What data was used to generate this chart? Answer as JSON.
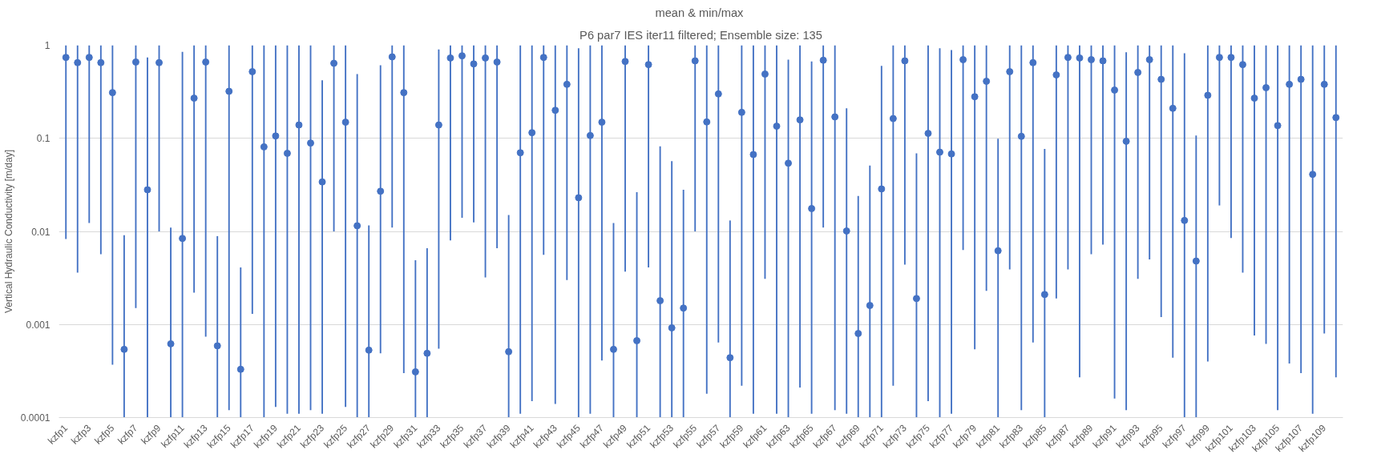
{
  "chart_data": {
    "type": "bar",
    "title": "mean  & min/max",
    "subtitle": "P6 par7 IES iter11 filtered; Ensemble size: 135",
    "ylabel": "Vertical Hydraulic Conductivity [m/day]",
    "categories": [
      "kzfp1",
      null,
      "kzfp3",
      null,
      "kzfp5",
      null,
      "kzfp7",
      null,
      "kzfp9",
      null,
      "kzfp11",
      null,
      "kzfp13",
      null,
      "kzfp15",
      null,
      "kzfp17",
      null,
      "kzfp19",
      null,
      "kzfp21",
      null,
      "kzfp23",
      null,
      "kzfp25",
      null,
      "kzfp27",
      null,
      "kzfp29",
      null,
      "kzfp31",
      null,
      "kzfp33",
      null,
      "kzfp35",
      null,
      "kzfp37",
      null,
      "kzfp39",
      null,
      "kzfp41",
      null,
      "kzfp43",
      null,
      "kzfp45",
      null,
      "kzfp47",
      null,
      "kzfp49",
      null,
      "kzfp51",
      null,
      "kzfp53",
      null,
      "kzfp55",
      null,
      "kzfp57",
      null,
      "kzfp59",
      null,
      "kzfp61",
      null,
      "kzfp63",
      null,
      "kzfp65",
      null,
      "kzfp67",
      null,
      "kzfp69",
      null,
      "kzfp71",
      null,
      "kzfp73",
      null,
      "kzfp75",
      null,
      "kzfp77",
      null,
      "kzfp79",
      null,
      "kzfp81",
      null,
      "kzfp83",
      null,
      "kzfp85",
      null,
      "kzfp87",
      null,
      "kzfp89",
      null,
      "kzfp91",
      null,
      "kzfp93",
      null,
      "kzfp95",
      null,
      "kzfp97",
      null,
      "kzfp99",
      null,
      "kzfp101",
      null,
      "kzfp103",
      null,
      "kzfp105",
      null,
      "kzfp107",
      null,
      "kzfp109",
      null
    ],
    "series": [
      {
        "color": "#4472c4",
        "base": [
          0.0083,
          0.0036,
          0.0123,
          0.0057,
          0.00037,
          0.0001,
          0.0015,
          0.0001,
          0.01,
          0.0001,
          0.0001,
          0.0022,
          0.00074,
          0.0001,
          0.00012,
          0.0001,
          0.0013,
          0.0001,
          0.00013,
          0.00011,
          0.00011,
          0.00012,
          0.00011,
          0.01,
          0.00013,
          0.0001,
          0.0001,
          0.00049,
          0.011,
          0.0003,
          0.0001,
          0.0001,
          0.00055,
          0.008,
          0.014,
          0.0125,
          0.0032,
          0.0066,
          0.0001,
          0.00011,
          0.00015,
          0.0056,
          0.00014,
          0.003,
          0.0001,
          0.00011,
          0.00041,
          0.0001,
          0.0037,
          0.0001,
          0.0041,
          0.0001,
          0.0001,
          0.0001,
          0.01,
          0.00018,
          0.00064,
          0.0001,
          0.00022,
          0.00011,
          0.0031,
          0.00011,
          0.0001,
          0.00021,
          0.00011,
          0.011,
          0.00012,
          0.00011,
          0.0001,
          0.0001,
          0.0001,
          0.00022,
          0.0044,
          0.0001,
          0.00015,
          0.0001,
          0.00011,
          0.0063,
          0.00054,
          0.0023,
          0.0001,
          0.0039,
          0.00012,
          0.00064,
          0.0001,
          0.0019,
          0.0039,
          0.00027,
          0.0057,
          0.0072,
          0.00016,
          0.00012,
          0.0031,
          0.005,
          0.0012,
          0.00044,
          0.0001,
          0.0001,
          0.0004,
          0.019,
          0.0085,
          0.0036,
          0.00076,
          0.00062,
          0.00012,
          0.00038,
          0.0003,
          0.00011,
          0.0008,
          0.00027
        ],
        "values": [
          0.9917,
          0.9964,
          0.9877,
          0.9943,
          0.99963,
          0.009,
          0.9985,
          0.7399,
          0.99,
          0.0109,
          0.8499,
          0.9978,
          0.99926,
          0.0088,
          0.99988,
          0.004,
          0.9987,
          0.9999,
          0.99987,
          0.99989,
          0.99989,
          0.99988,
          0.41989,
          0.99,
          0.99987,
          0.4899,
          0.0115,
          0.60951,
          0.989,
          0.9997,
          0.0048,
          0.0065,
          0.89945,
          0.992,
          0.986,
          0.9875,
          0.9968,
          0.9934,
          0.0149,
          0.99989,
          0.99985,
          0.9944,
          0.99986,
          0.997,
          0.9299,
          0.99989,
          0.99959,
          0.0122,
          0.9963,
          0.0263,
          0.9959,
          0.0819,
          0.0569,
          0.0279,
          0.99,
          0.99982,
          0.99936,
          0.013,
          0.99978,
          0.99989,
          0.9969,
          0.99989,
          0.6999,
          0.99979,
          0.66989,
          0.989,
          0.99988,
          0.20989,
          0.0239,
          0.0509,
          0.5999,
          0.99978,
          0.9956,
          0.0689,
          0.99985,
          0.9299,
          0.88989,
          0.9937,
          0.99946,
          0.9977,
          0.0989,
          0.9961,
          0.99988,
          0.99936,
          0.0769,
          0.9981,
          0.9961,
          0.99973,
          0.9943,
          0.9928,
          0.99984,
          0.83988,
          0.9969,
          0.995,
          0.9988,
          0.99956,
          0.8199,
          0.1069,
          0.9996,
          0.981,
          0.9915,
          0.9964,
          0.99924,
          0.99938,
          0.99988,
          0.99962,
          0.9997,
          0.99989,
          0.9992,
          0.99973
        ]
      },
      {
        "type": "scatter",
        "color": "#4472c4",
        "marker": "circle",
        "values": [
          0.74,
          0.65,
          0.74,
          0.65,
          0.31,
          0.00054,
          0.66,
          0.028,
          0.65,
          0.00062,
          0.0084,
          0.27,
          0.66,
          0.00059,
          0.32,
          0.00033,
          0.52,
          0.081,
          0.106,
          0.069,
          0.139,
          0.089,
          0.034,
          0.64,
          0.149,
          0.0115,
          0.00053,
          0.027,
          0.75,
          0.31,
          0.00031,
          0.00049,
          0.139,
          0.73,
          0.77,
          0.63,
          0.73,
          0.66,
          0.00051,
          0.07,
          0.115,
          0.74,
          0.2,
          0.38,
          0.023,
          0.107,
          0.149,
          0.00054,
          0.67,
          0.00067,
          0.62,
          0.0018,
          0.00092,
          0.0015,
          0.68,
          0.15,
          0.3,
          0.00044,
          0.19,
          0.067,
          0.49,
          0.135,
          0.054,
          0.158,
          0.0176,
          0.69,
          0.17,
          0.0101,
          0.0008,
          0.0016,
          0.0286,
          0.163,
          0.68,
          0.0019,
          0.113,
          0.071,
          0.068,
          0.7,
          0.28,
          0.41,
          0.0062,
          0.52,
          0.105,
          0.65,
          0.0021,
          0.48,
          0.74,
          0.73,
          0.7,
          0.68,
          0.33,
          0.093,
          0.51,
          0.7,
          0.43,
          0.21,
          0.0131,
          0.0048,
          0.29,
          0.74,
          0.74,
          0.62,
          0.27,
          0.35,
          0.137,
          0.38,
          0.43,
          0.041,
          0.38,
          0.167
        ]
      }
    ],
    "log": true,
    "grid": "y",
    "ylim": [
      0.0001,
      1
    ],
    "yticks": [
      0.0001,
      0.001,
      0.01,
      0.1,
      1
    ]
  }
}
